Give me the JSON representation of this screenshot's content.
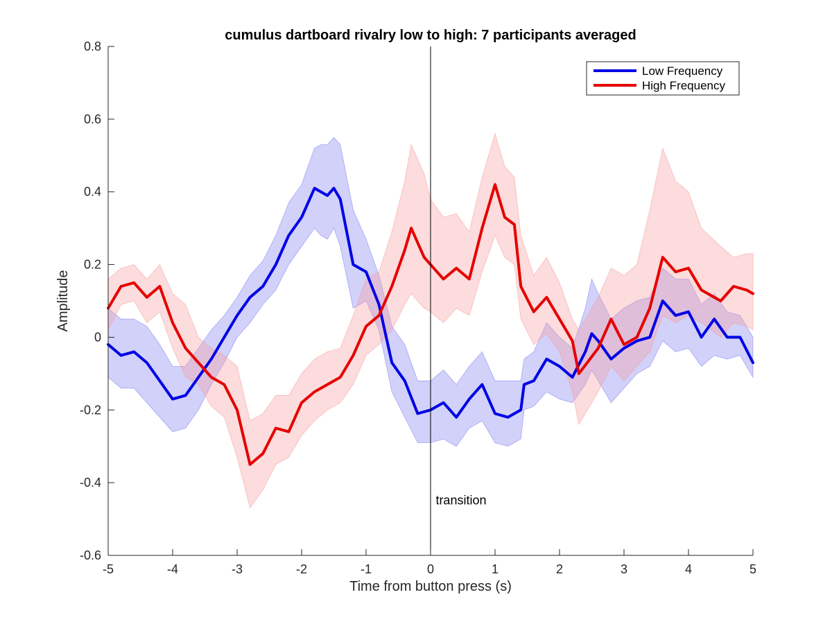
{
  "chart_data": {
    "type": "line",
    "title": "cumulus dartboard rivalry low to high: 7 participants averaged",
    "xlabel": "Time from button press (s)",
    "ylabel": "Amplitude",
    "xlim": [
      -5,
      5
    ],
    "ylim": [
      -0.6,
      0.8
    ],
    "x_ticks": [
      "-5",
      "-4",
      "-3",
      "-2",
      "-1",
      "0",
      "1",
      "2",
      "3",
      "4",
      "5"
    ],
    "y_ticks": [
      "-0.6",
      "-0.4",
      "-0.2",
      "0",
      "0.2",
      "0.4",
      "0.6",
      "0.8"
    ],
    "grid": false,
    "legend_position": "top-right",
    "annotations": [
      {
        "text": "transition",
        "x": 0.08,
        "y": -0.46
      }
    ],
    "vertical_lines": [
      {
        "x": 0,
        "color": "#000000"
      }
    ],
    "series": [
      {
        "name": "Low Frequency",
        "color": "#0000e6",
        "band_color": "#7b7bf0",
        "points": [
          [
            -5.0,
            -0.02,
            -0.11,
            0.08
          ],
          [
            -4.8,
            -0.05,
            -0.14,
            0.05
          ],
          [
            -4.6,
            -0.04,
            -0.14,
            0.05
          ],
          [
            -4.4,
            -0.07,
            -0.18,
            0.03
          ],
          [
            -4.2,
            -0.12,
            -0.22,
            -0.02
          ],
          [
            -4.0,
            -0.17,
            -0.26,
            -0.08
          ],
          [
            -3.8,
            -0.16,
            -0.25,
            -0.08
          ],
          [
            -3.6,
            -0.11,
            -0.2,
            -0.03
          ],
          [
            -3.4,
            -0.06,
            -0.13,
            0.02
          ],
          [
            -3.2,
            0.0,
            -0.07,
            0.06
          ],
          [
            -3.0,
            0.06,
            0.0,
            0.11
          ],
          [
            -2.8,
            0.11,
            0.04,
            0.17
          ],
          [
            -2.6,
            0.14,
            0.09,
            0.21
          ],
          [
            -2.4,
            0.2,
            0.13,
            0.28
          ],
          [
            -2.2,
            0.28,
            0.2,
            0.37
          ],
          [
            -2.0,
            0.33,
            0.25,
            0.42
          ],
          [
            -1.8,
            0.41,
            0.3,
            0.52
          ],
          [
            -1.7,
            0.4,
            0.28,
            0.53
          ],
          [
            -1.6,
            0.39,
            0.27,
            0.53
          ],
          [
            -1.5,
            0.41,
            0.3,
            0.55
          ],
          [
            -1.4,
            0.38,
            0.25,
            0.53
          ],
          [
            -1.2,
            0.2,
            0.08,
            0.35
          ],
          [
            -1.0,
            0.18,
            0.1,
            0.27
          ],
          [
            -0.8,
            0.09,
            0.02,
            0.17
          ],
          [
            -0.6,
            -0.07,
            -0.15,
            0.03
          ],
          [
            -0.4,
            -0.12,
            -0.22,
            -0.02
          ],
          [
            -0.2,
            -0.21,
            -0.29,
            -0.12
          ],
          [
            0.0,
            -0.2,
            -0.29,
            -0.12
          ],
          [
            0.2,
            -0.18,
            -0.28,
            -0.09
          ],
          [
            0.4,
            -0.22,
            -0.3,
            -0.13
          ],
          [
            0.6,
            -0.17,
            -0.25,
            -0.08
          ],
          [
            0.8,
            -0.13,
            -0.23,
            -0.04
          ],
          [
            1.0,
            -0.21,
            -0.29,
            -0.12
          ],
          [
            1.2,
            -0.22,
            -0.3,
            -0.12
          ],
          [
            1.4,
            -0.2,
            -0.28,
            -0.12
          ],
          [
            1.45,
            -0.13,
            -0.2,
            -0.06
          ],
          [
            1.6,
            -0.12,
            -0.19,
            -0.04
          ],
          [
            1.8,
            -0.06,
            -0.15,
            0.04
          ],
          [
            2.0,
            -0.08,
            -0.17,
            0.0
          ],
          [
            2.2,
            -0.11,
            -0.18,
            -0.03
          ],
          [
            2.4,
            -0.04,
            -0.13,
            0.08
          ],
          [
            2.5,
            0.01,
            -0.09,
            0.16
          ],
          [
            2.6,
            -0.01,
            -0.12,
            0.12
          ],
          [
            2.8,
            -0.06,
            -0.18,
            0.05
          ],
          [
            3.0,
            -0.03,
            -0.14,
            0.08
          ],
          [
            3.2,
            -0.01,
            -0.1,
            0.1
          ],
          [
            3.4,
            0.0,
            -0.08,
            0.11
          ],
          [
            3.6,
            0.1,
            -0.01,
            0.19
          ],
          [
            3.8,
            0.06,
            -0.04,
            0.16
          ],
          [
            4.0,
            0.07,
            -0.03,
            0.16
          ],
          [
            4.2,
            0.0,
            -0.08,
            0.09
          ],
          [
            4.4,
            0.05,
            -0.05,
            0.12
          ],
          [
            4.6,
            0.0,
            -0.06,
            0.07
          ],
          [
            4.8,
            0.0,
            -0.05,
            0.06
          ],
          [
            5.0,
            -0.07,
            -0.11,
            0.0
          ]
        ]
      },
      {
        "name": "High Frequency",
        "color": "#e60000",
        "band_color": "#f59a9a",
        "points": [
          [
            -5.0,
            0.08,
            0.02,
            0.16
          ],
          [
            -4.8,
            0.14,
            0.09,
            0.19
          ],
          [
            -4.6,
            0.15,
            0.1,
            0.2
          ],
          [
            -4.4,
            0.11,
            0.04,
            0.16
          ],
          [
            -4.2,
            0.14,
            0.07,
            0.2
          ],
          [
            -4.0,
            0.04,
            -0.03,
            0.12
          ],
          [
            -3.8,
            -0.03,
            -0.11,
            0.09
          ],
          [
            -3.6,
            -0.07,
            -0.13,
            0.0
          ],
          [
            -3.4,
            -0.11,
            -0.19,
            -0.03
          ],
          [
            -3.2,
            -0.13,
            -0.22,
            -0.05
          ],
          [
            -3.0,
            -0.2,
            -0.33,
            -0.08
          ],
          [
            -2.8,
            -0.35,
            -0.47,
            -0.23
          ],
          [
            -2.6,
            -0.32,
            -0.42,
            -0.21
          ],
          [
            -2.4,
            -0.25,
            -0.35,
            -0.16
          ],
          [
            -2.2,
            -0.26,
            -0.33,
            -0.16
          ],
          [
            -2.0,
            -0.18,
            -0.27,
            -0.1
          ],
          [
            -1.8,
            -0.15,
            -0.23,
            -0.06
          ],
          [
            -1.6,
            -0.13,
            -0.2,
            -0.04
          ],
          [
            -1.4,
            -0.11,
            -0.18,
            -0.03
          ],
          [
            -1.2,
            -0.05,
            -0.13,
            0.06
          ],
          [
            -1.0,
            0.03,
            -0.05,
            0.16
          ],
          [
            -0.8,
            0.06,
            -0.02,
            0.18
          ],
          [
            -0.6,
            0.14,
            0.02,
            0.29
          ],
          [
            -0.4,
            0.24,
            0.09,
            0.43
          ],
          [
            -0.3,
            0.3,
            0.12,
            0.53
          ],
          [
            -0.1,
            0.22,
            0.08,
            0.45
          ],
          [
            0.0,
            0.2,
            0.07,
            0.38
          ],
          [
            0.2,
            0.16,
            0.04,
            0.33
          ],
          [
            0.4,
            0.19,
            0.08,
            0.34
          ],
          [
            0.6,
            0.16,
            0.06,
            0.29
          ],
          [
            0.8,
            0.3,
            0.18,
            0.44
          ],
          [
            1.0,
            0.42,
            0.28,
            0.56
          ],
          [
            1.15,
            0.33,
            0.22,
            0.47
          ],
          [
            1.3,
            0.31,
            0.2,
            0.44
          ],
          [
            1.4,
            0.14,
            0.05,
            0.28
          ],
          [
            1.6,
            0.07,
            -0.02,
            0.17
          ],
          [
            1.8,
            0.11,
            0.01,
            0.22
          ],
          [
            2.0,
            0.05,
            -0.04,
            0.15
          ],
          [
            2.2,
            -0.01,
            -0.15,
            0.05
          ],
          [
            2.3,
            -0.1,
            -0.24,
            0.02
          ],
          [
            2.6,
            -0.03,
            -0.15,
            0.11
          ],
          [
            2.8,
            0.05,
            -0.08,
            0.19
          ],
          [
            3.0,
            -0.02,
            -0.12,
            0.17
          ],
          [
            3.2,
            0.0,
            -0.08,
            0.2
          ],
          [
            3.4,
            0.08,
            -0.04,
            0.35
          ],
          [
            3.6,
            0.22,
            0.06,
            0.52
          ],
          [
            3.8,
            0.18,
            0.04,
            0.43
          ],
          [
            4.0,
            0.19,
            0.06,
            0.4
          ],
          [
            4.2,
            0.13,
            0.04,
            0.3
          ],
          [
            4.5,
            0.1,
            0.0,
            0.25
          ],
          [
            4.7,
            0.14,
            0.04,
            0.22
          ],
          [
            4.9,
            0.13,
            0.03,
            0.23
          ],
          [
            5.0,
            0.12,
            0.02,
            0.23
          ]
        ]
      }
    ]
  }
}
